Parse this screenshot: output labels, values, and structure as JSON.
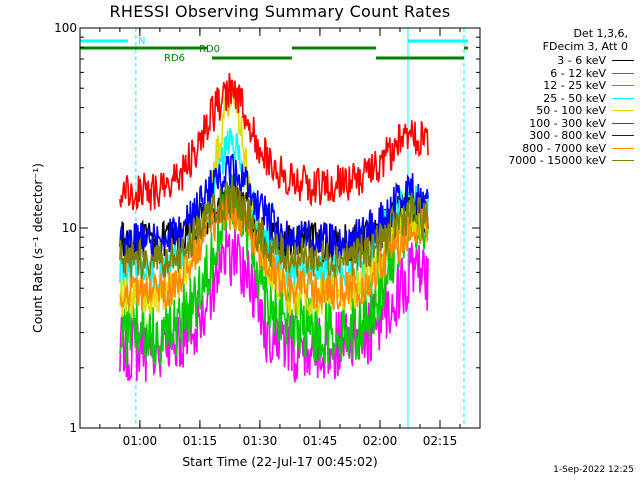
{
  "chart_data": {
    "type": "line",
    "title": "RHESSI Observing Summary Count Rates",
    "xlabel": "Start Time (22-Jul-17 00:45:02)",
    "ylabel": "Count Rate (s⁻¹ detector⁻¹)",
    "y_scale": "log",
    "ylim": [
      1,
      100
    ],
    "xlim": [
      "00:45:02",
      "02:25:00"
    ],
    "x_ticks": [
      "01:00",
      "01:15",
      "01:30",
      "01:45",
      "02:00",
      "02:15"
    ],
    "y_ticks": [
      "1",
      "10",
      "100"
    ],
    "legend_header": [
      "Det 1,3,6,",
      "FDecim 3, Att 0"
    ],
    "legend_position": "right, outside plot",
    "series": [
      {
        "name": "3 - 6 keV",
        "color": "#000000",
        "x": [
          "00:54",
          "01:05",
          "01:10",
          "01:15",
          "01:19",
          "01:22",
          "01:25",
          "01:28",
          "01:32",
          "01:38",
          "01:45",
          "01:55",
          "02:00",
          "02:05",
          "02:08",
          "02:11"
        ],
        "values": [
          8.5,
          8.5,
          8.8,
          10.5,
          13,
          14,
          13.5,
          11,
          8.5,
          8.5,
          8.5,
          8.5,
          9.5,
          12,
          13,
          11
        ]
      },
      {
        "name": "6 - 12 keV",
        "color": "#ff00ff",
        "x": [
          "00:54",
          "01:05",
          "01:10",
          "01:15",
          "01:19",
          "01:22",
          "01:25",
          "01:28",
          "01:32",
          "01:38",
          "01:45",
          "01:55",
          "02:00",
          "02:05",
          "02:08",
          "02:11"
        ],
        "values": [
          2.5,
          2.5,
          2.7,
          3.5,
          6,
          7.5,
          7,
          5,
          3,
          2.5,
          2.5,
          2.7,
          3.5,
          5,
          6,
          5.5
        ]
      },
      {
        "name": "12 - 25 keV",
        "color": "#00cc00",
        "x": [
          "00:54",
          "01:05",
          "01:10",
          "01:15",
          "01:19",
          "01:22",
          "01:25",
          "01:28",
          "01:32",
          "01:38",
          "01:45",
          "01:55",
          "02:00",
          "02:05",
          "02:08",
          "02:11"
        ],
        "values": [
          3,
          3,
          3.3,
          5,
          9,
          13,
          12,
          8,
          4.5,
          3.2,
          3,
          3.2,
          5,
          9,
          12,
          10
        ]
      },
      {
        "name": "25 - 50 keV",
        "color": "#00ffff",
        "x": [
          "00:54",
          "01:05",
          "01:10",
          "01:15",
          "01:19",
          "01:22",
          "01:25",
          "01:28",
          "01:32",
          "01:38",
          "01:45",
          "01:55",
          "02:00",
          "02:05",
          "02:08",
          "02:11"
        ],
        "values": [
          6,
          6,
          7,
          9,
          17,
          28,
          24,
          13,
          8,
          6,
          6,
          6.5,
          9,
          13,
          14,
          12
        ]
      },
      {
        "name": "50 - 100 keV",
        "color": "#dddd00",
        "x": [
          "00:54",
          "01:05",
          "01:10",
          "01:15",
          "01:19",
          "01:22",
          "01:25",
          "01:28",
          "01:32",
          "01:38",
          "01:45",
          "01:55",
          "02:00",
          "02:05",
          "02:08",
          "02:11"
        ],
        "values": [
          4.5,
          4.5,
          5.5,
          9,
          22,
          45,
          34,
          13,
          6,
          4.5,
          4.5,
          5,
          7,
          10,
          11,
          10
        ]
      },
      {
        "name": "100 - 300 keV",
        "color": "#ff0000",
        "x": [
          "00:54",
          "01:05",
          "01:10",
          "01:15",
          "01:19",
          "01:22",
          "01:25",
          "01:28",
          "01:32",
          "01:38",
          "01:45",
          "01:55",
          "02:00",
          "02:05",
          "02:08",
          "02:11"
        ],
        "values": [
          15,
          15.5,
          18,
          27,
          40,
          50,
          42,
          30,
          22,
          17,
          16,
          17.5,
          21,
          27,
          29,
          28
        ]
      },
      {
        "name": "300 - 800 keV",
        "color": "#0000ff",
        "x": [
          "00:54",
          "01:05",
          "01:10",
          "01:15",
          "01:19",
          "01:22",
          "01:25",
          "01:28",
          "01:32",
          "01:38",
          "01:45",
          "01:55",
          "02:00",
          "02:05",
          "02:08",
          "02:11"
        ],
        "values": [
          8.5,
          8.5,
          9.5,
          13,
          17,
          19.5,
          18,
          15,
          11,
          9,
          8.5,
          9,
          11,
          14,
          15.5,
          14
        ]
      },
      {
        "name": "800 - 7000 keV",
        "color": "#ff8c00",
        "x": [
          "00:54",
          "01:05",
          "01:10",
          "01:15",
          "01:19",
          "01:22",
          "01:25",
          "01:28",
          "01:32",
          "01:38",
          "01:45",
          "01:55",
          "02:00",
          "02:05",
          "02:08",
          "02:11"
        ],
        "values": [
          4.8,
          4.8,
          5.5,
          8.5,
          11,
          12,
          11.5,
          9,
          6.5,
          5,
          4.8,
          5,
          6.5,
          8.5,
          10,
          10
        ]
      },
      {
        "name": "7000 - 15000 keV",
        "color": "#808000",
        "x": [
          "00:54",
          "01:05",
          "01:10",
          "01:15",
          "01:19",
          "01:22",
          "01:25",
          "01:28",
          "01:32",
          "01:38",
          "01:45",
          "01:55",
          "02:00",
          "02:05",
          "02:08",
          "02:11"
        ],
        "values": [
          7,
          7,
          7.5,
          10,
          12.5,
          14,
          13,
          10.5,
          8,
          7.2,
          7,
          7.3,
          8.5,
          11,
          12,
          11
        ]
      }
    ],
    "flag_bars": [
      {
        "label": "N",
        "color": "#00ffff",
        "row": 1,
        "segments": [
          [
            "00:45:02",
            "00:57:00"
          ],
          [
            "02:07:00",
            "02:22:00"
          ]
        ]
      },
      {
        "label": "RD0",
        "color": "#008000",
        "row": 2,
        "segments": [
          [
            "00:45:02",
            "01:17:00"
          ],
          [
            "01:38:00",
            "01:59:00"
          ],
          [
            "02:21:00",
            "02:22:00"
          ]
        ]
      },
      {
        "label": "RD6",
        "color": "#008000",
        "row": 3,
        "segments": [
          [
            "01:18:00",
            "01:38:00"
          ],
          [
            "01:59:00",
            "02:21:00"
          ]
        ]
      }
    ],
    "vertical_markers": [
      {
        "time": "00:45:02",
        "color": "#00ffff",
        "style": "solid"
      },
      {
        "time": "00:59:00",
        "color": "#00ffff",
        "style": "dashed"
      },
      {
        "time": "02:07:00",
        "color": "#00ffff",
        "style": "solid"
      },
      {
        "time": "02:21:00",
        "color": "#00ffff",
        "style": "dashed"
      }
    ],
    "data_window": [
      "00:55:00",
      "02:12:00"
    ],
    "grid": false
  },
  "timestamp": "1-Sep-2022 12:25"
}
